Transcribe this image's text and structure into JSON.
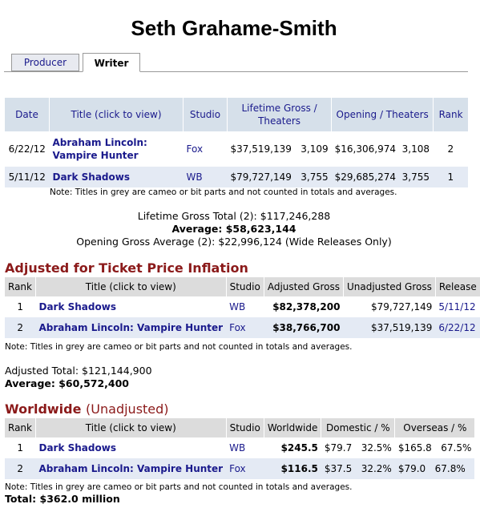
{
  "page": {
    "title": "Seth Grahame-Smith"
  },
  "tabs": [
    {
      "label": "Producer"
    },
    {
      "label": "Writer"
    }
  ],
  "writer_table": {
    "headers": {
      "date": "Date",
      "title": "Title (click to view)",
      "studio": "Studio",
      "lifetime": "Lifetime Gross / Theaters",
      "opening": "Opening / Theaters",
      "rank": "Rank"
    },
    "rows": [
      {
        "date": "6/22/12",
        "title": "Abraham Lincoln: Vampire Hunter",
        "studio": "Fox",
        "gross": "$37,519,139",
        "theaters": "3,109",
        "opening": "$16,306,974",
        "open_theaters": "3,108",
        "rank": "2"
      },
      {
        "date": "5/11/12",
        "title": "Dark Shadows",
        "studio": "WB",
        "gross": "$79,727,149",
        "theaters": "3,755",
        "opening": "$29,685,274",
        "open_theaters": "3,755",
        "rank": "1"
      }
    ]
  },
  "note": "Note: Titles in grey are cameo or bit parts and not counted in totals and averages.",
  "totals": {
    "lifetime": "Lifetime Gross Total (2): $117,246,288",
    "average": "Average: $58,623,144",
    "opening_avg": "Opening Gross Average (2): $22,996,124 (Wide Releases Only)"
  },
  "adjusted": {
    "title": "Adjusted for Ticket Price Inflation",
    "headers": {
      "rank": "Rank",
      "title": "Title (click to view)",
      "studio": "Studio",
      "adjusted": "Adjusted Gross",
      "unadjusted": "Unadjusted Gross",
      "release": "Release"
    },
    "rows": [
      {
        "rank": "1",
        "title": "Dark Shadows",
        "studio": "WB",
        "adjusted": "$82,378,200",
        "unadjusted": "$79,727,149",
        "release": "5/11/12"
      },
      {
        "rank": "2",
        "title": "Abraham Lincoln: Vampire Hunter",
        "studio": "Fox",
        "adjusted": "$38,766,700",
        "unadjusted": "$37,519,139",
        "release": "6/22/12"
      }
    ],
    "total": "Adjusted Total: $121,144,900",
    "average": "Average: $60,572,400"
  },
  "worldwide": {
    "title": "Worldwide",
    "subtitle": "(Unadjusted)",
    "headers": {
      "rank": "Rank",
      "title": "Title (click to view)",
      "studio": "Studio",
      "worldwide": "Worldwide",
      "domestic": "Domestic / %",
      "overseas": "Overseas / %"
    },
    "rows": [
      {
        "rank": "1",
        "title": "Dark Shadows",
        "studio": "WB",
        "worldwide": "$245.5",
        "domestic": "$79.7",
        "domestic_pct": "32.5%",
        "overseas": "$165.8",
        "overseas_pct": "67.5%"
      },
      {
        "rank": "2",
        "title": "Abraham Lincoln: Vampire Hunter",
        "studio": "Fox",
        "worldwide": "$116.5",
        "domestic": "$37.5",
        "domestic_pct": "32.2%",
        "overseas": "$79.0",
        "overseas_pct": "67.8%"
      }
    ],
    "total": "Total: $362.0 million"
  }
}
